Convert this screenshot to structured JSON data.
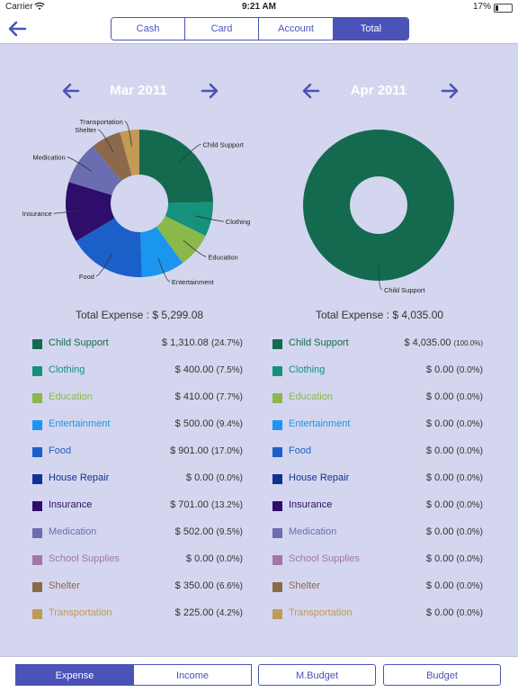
{
  "status": {
    "carrier": "Carrier",
    "time": "9:21 AM",
    "battery": "17%",
    "battery_level": 0.17
  },
  "nav": {
    "tabs": [
      "Cash",
      "Card",
      "Account",
      "Total"
    ],
    "active_tab": 3
  },
  "colors": {
    "accent": "#4b53b8",
    "background": "#d3d6ee",
    "categories": [
      "#146a4e",
      "#15917c",
      "#8bb84a",
      "#1a96f0",
      "#1a60c8",
      "#0f3293",
      "#2e0d6b",
      "#6b6db0",
      "#a176a9",
      "#8b6a4b",
      "#c29a55"
    ]
  },
  "categories": [
    "Child Support",
    "Clothing",
    "Education",
    "Entertainment",
    "Food",
    "House Repair",
    "Insurance",
    "Medication",
    "School Supplies",
    "Shelter",
    "Transportation"
  ],
  "panels": [
    {
      "month": "Mar 2011",
      "total_label": "Total Expense : $ 5,299.08",
      "amounts": [
        "$ 1,310.08",
        "$ 400.00",
        "$ 410.00",
        "$ 500.00",
        "$ 901.00",
        "$ 0.00",
        "$ 701.00",
        "$ 502.00",
        "$ 0.00",
        "$ 350.00",
        "$ 225.00"
      ],
      "percents": [
        "(24.7%)",
        "(7.5%)",
        "(7.7%)",
        "(9.4%)",
        "(17.0%)",
        "(0.0%)",
        "(13.2%)",
        "(9.5%)",
        "(0.0%)",
        "(6.6%)",
        "(4.2%)"
      ],
      "pie_labels": [
        "Child Support",
        "Clothing",
        "Education",
        "Entertainment",
        "Food",
        "Insurance",
        "Medication",
        "Shelter",
        "Transportation"
      ]
    },
    {
      "month": "Apr 2011",
      "total_label": "Total Expense : $ 4,035.00",
      "amounts": [
        "$ 4,035.00",
        "$ 0.00",
        "$ 0.00",
        "$ 0.00",
        "$ 0.00",
        "$ 0.00",
        "$ 0.00",
        "$ 0.00",
        "$ 0.00",
        "$ 0.00",
        "$ 0.00"
      ],
      "percents": [
        "(100.0%)",
        "(0.0%)",
        "(0.0%)",
        "(0.0%)",
        "(0.0%)",
        "(0.0%)",
        "(0.0%)",
        "(0.0%)",
        "(0.0%)",
        "(0.0%)",
        "(0.0%)"
      ],
      "pie_labels": [
        "Child Support"
      ]
    }
  ],
  "chart_data": [
    {
      "type": "pie",
      "title": "Mar 2011",
      "categories": [
        "Child Support",
        "Clothing",
        "Education",
        "Entertainment",
        "Food",
        "House Repair",
        "Insurance",
        "Medication",
        "School Supplies",
        "Shelter",
        "Transportation"
      ],
      "values": [
        1310.08,
        400.0,
        410.0,
        500.0,
        901.0,
        0.0,
        701.0,
        502.0,
        0.0,
        350.0,
        225.0
      ]
    },
    {
      "type": "pie",
      "title": "Apr 2011",
      "categories": [
        "Child Support",
        "Clothing",
        "Education",
        "Entertainment",
        "Food",
        "House Repair",
        "Insurance",
        "Medication",
        "School Supplies",
        "Shelter",
        "Transportation"
      ],
      "values": [
        4035.0,
        0,
        0,
        0,
        0,
        0,
        0,
        0,
        0,
        0,
        0
      ]
    }
  ],
  "bottom_tabs": [
    "Expense",
    "Income",
    "M.Budget",
    "Budget"
  ],
  "bottom_active": 0
}
